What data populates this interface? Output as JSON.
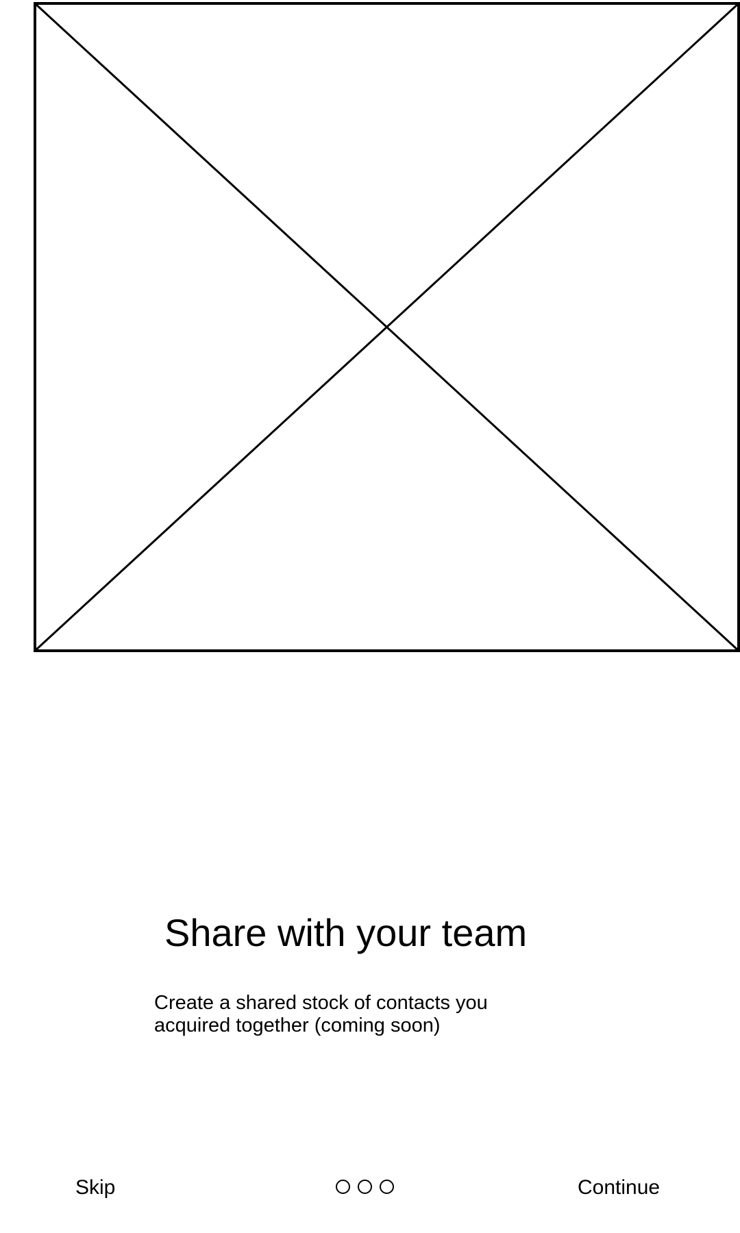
{
  "hero": {
    "icon": "image-placeholder-icon"
  },
  "content": {
    "title": "Share with your team",
    "subtitle_line1": "Create a shared stock of contacts you",
    "subtitle_line2": "acquired together (coming soon)"
  },
  "footer": {
    "skip_label": "Skip",
    "continue_label": "Continue",
    "pager": {
      "total_pages": 3,
      "style": "outlined-circles"
    }
  },
  "colors": {
    "background": "#ffffff",
    "foreground": "#000000"
  }
}
